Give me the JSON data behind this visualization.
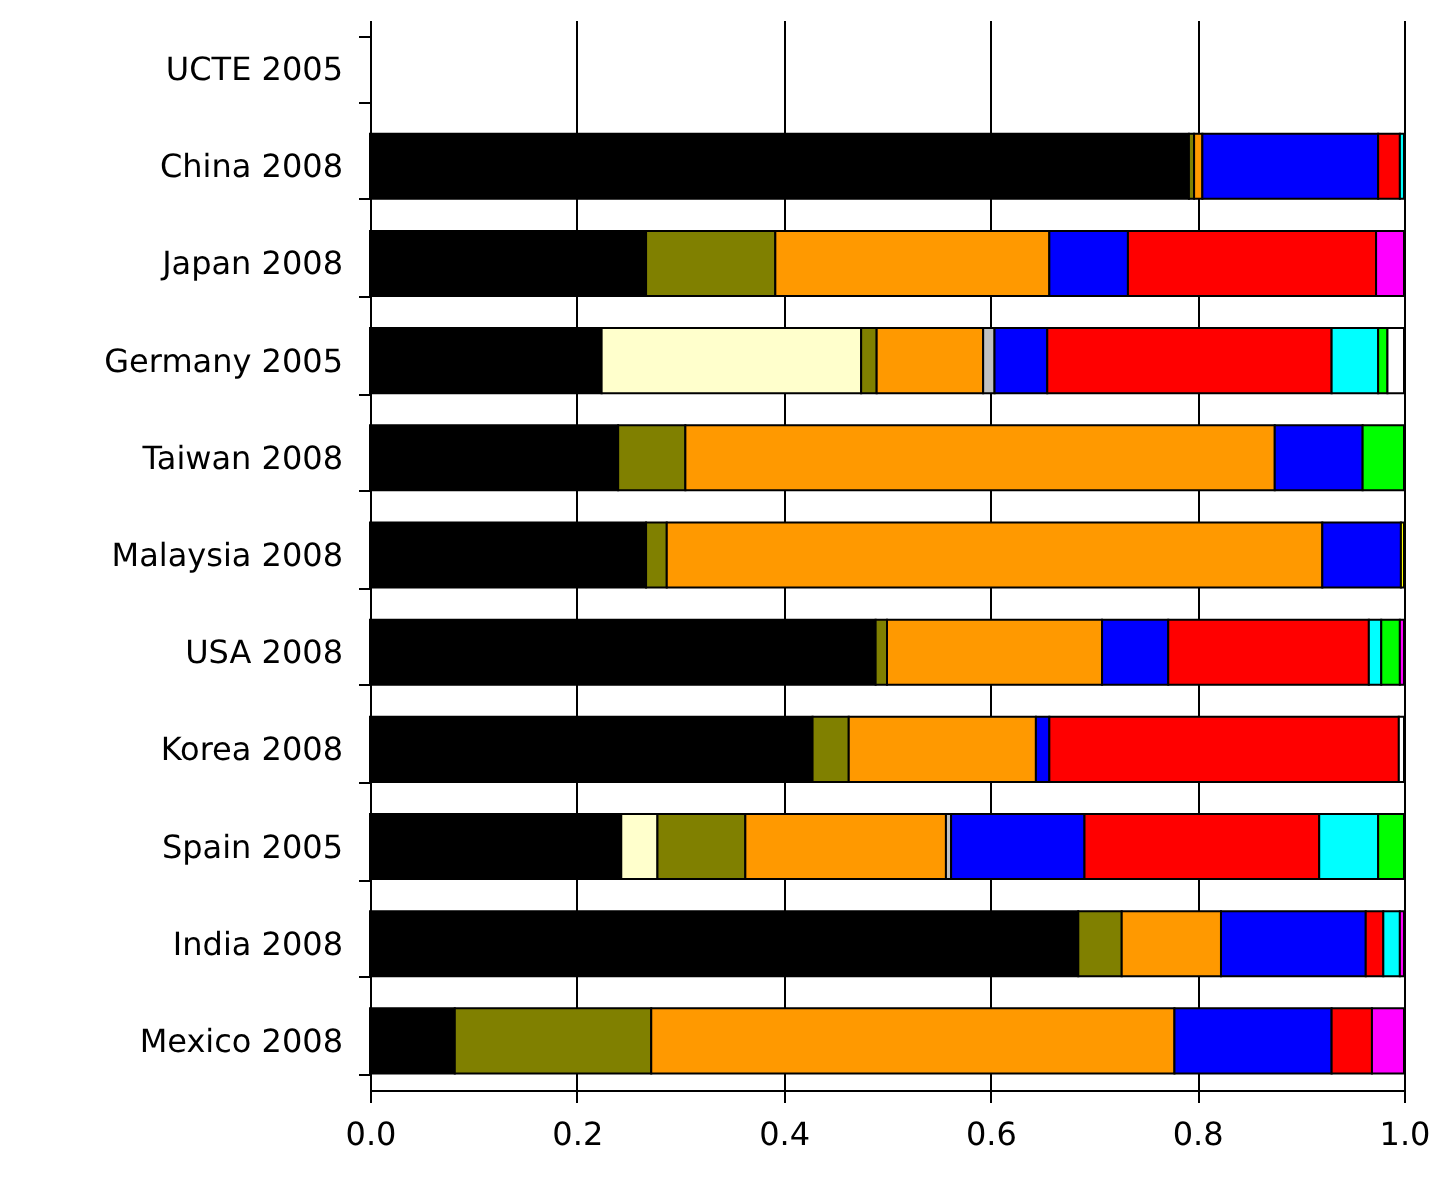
{
  "chart_data": {
    "type": "bar",
    "orientation": "horizontal",
    "stacked": true,
    "grid": "x",
    "categories": [
      "UCTE 2005",
      "China 2008",
      "Japan 2008",
      "Germany 2005",
      "Taiwan 2008",
      "Malaysia 2008",
      "USA 2008",
      "Korea 2008",
      "Spain 2005",
      "India 2008",
      "Mexico 2008"
    ],
    "xlim": [
      0,
      1
    ],
    "xticks": [
      {
        "value": 0,
        "label": "0.0"
      },
      {
        "value": 0.2,
        "label": "0.2"
      },
      {
        "value": 0.4,
        "label": "0.4"
      },
      {
        "value": 0.6,
        "label": "0.6"
      },
      {
        "value": 0.8,
        "label": "0.8"
      },
      {
        "value": 1,
        "label": "1.0"
      }
    ],
    "series": [
      {
        "color": "#000000",
        "values": [
          null,
          0.792,
          0.267,
          0.224,
          0.24,
          0.267,
          0.489,
          0.428,
          0.243,
          0.685,
          0.082
        ]
      },
      {
        "color": "#ffffcc",
        "values": [
          null,
          null,
          null,
          0.251,
          null,
          null,
          null,
          null,
          0.035,
          null,
          null
        ]
      },
      {
        "color": "#808000",
        "values": [
          null,
          0.005,
          0.125,
          0.015,
          0.065,
          0.02,
          0.011,
          0.035,
          0.085,
          0.042,
          0.19
        ]
      },
      {
        "color": "#ff9900",
        "values": [
          null,
          0.008,
          0.265,
          0.103,
          0.57,
          0.634,
          0.208,
          0.181,
          0.194,
          0.096,
          0.506
        ]
      },
      {
        "color": "#c0c0c0",
        "values": [
          null,
          null,
          null,
          0.011,
          null,
          null,
          null,
          null,
          0.005,
          null,
          null
        ]
      },
      {
        "color": "#0000ff",
        "values": [
          null,
          0.17,
          0.076,
          0.051,
          0.085,
          0.076,
          0.064,
          0.013,
          0.129,
          0.14,
          0.152
        ]
      },
      {
        "color": "#ff0000",
        "values": [
          null,
          0.021,
          0.24,
          0.275,
          null,
          null,
          0.194,
          0.338,
          0.227,
          0.017,
          0.039
        ]
      },
      {
        "color": "#00ffff",
        "values": [
          null,
          0.004,
          null,
          0.045,
          null,
          null,
          0.012,
          null,
          0.057,
          0.016,
          null
        ]
      },
      {
        "color": "#00ff00",
        "values": [
          null,
          null,
          null,
          0.009,
          0.04,
          null,
          0.018,
          null,
          0.025,
          null,
          null
        ]
      },
      {
        "color": "#ffff00",
        "values": [
          null,
          null,
          null,
          null,
          null,
          0.003,
          null,
          null,
          null,
          null,
          null
        ]
      },
      {
        "color": "#ff00ff",
        "values": [
          null,
          null,
          0.027,
          null,
          null,
          null,
          0.004,
          null,
          null,
          0.004,
          0.031
        ]
      },
      {
        "color": "#ffffff",
        "values": [
          null,
          null,
          null,
          0.016,
          null,
          null,
          null,
          0.005,
          null,
          null,
          null
        ]
      }
    ]
  }
}
